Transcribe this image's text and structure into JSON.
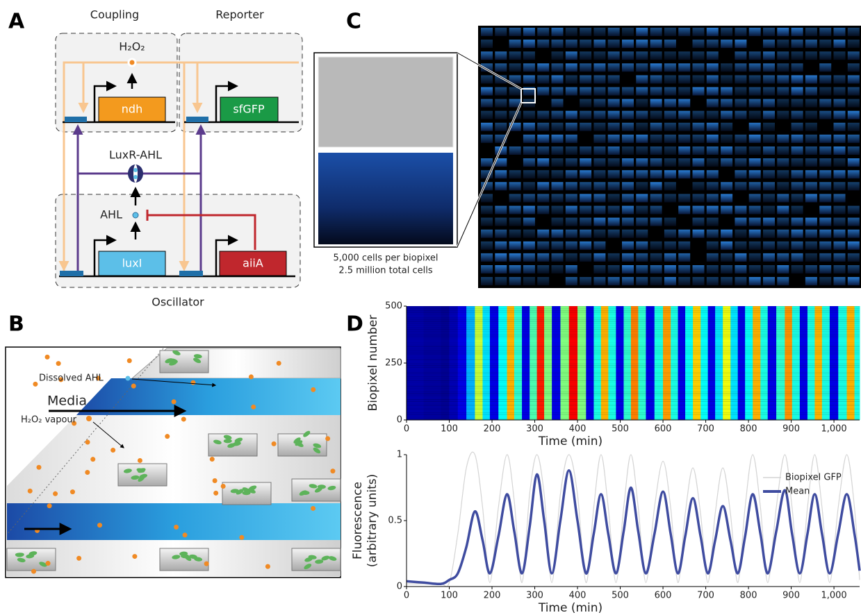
{
  "panel_labels": [
    "A",
    "B",
    "C",
    "D"
  ],
  "diagram_a": {
    "coupling": "Coupling",
    "reporter": "Reporter",
    "oscillator": "Oscillator",
    "h2o2": "H₂O₂",
    "luxr_ahl": "LuxR-AHL",
    "ahl": "AHL",
    "genes": [
      "ndh",
      "sfGFP",
      "luxI",
      "aiiA"
    ]
  },
  "diagram_b": {
    "dissolved_ahl": "Dissolved AHL",
    "media": "Media",
    "h2o2_vapour": "H₂O₂ vapour"
  },
  "panel_c": {
    "caption": [
      "5,000 cells per biopixel",
      "2.5 million total cells"
    ]
  },
  "chart_data": [
    {
      "type": "heatmap",
      "ylabel": "Biopixel number",
      "xlabel": "Time (min)",
      "x": [
        0,
        40,
        80,
        100,
        120,
        140,
        160,
        178,
        195,
        215,
        235,
        252,
        270,
        288,
        305,
        322,
        340,
        360,
        380,
        400,
        420,
        438,
        455,
        472,
        490,
        508,
        525,
        542,
        560,
        580,
        600,
        618,
        635,
        652,
        670,
        688,
        705,
        722,
        740,
        758,
        775,
        792,
        810,
        828,
        845,
        865,
        885,
        902,
        920,
        938,
        955,
        972,
        990,
        1010,
        1030,
        1048,
        1060
      ],
      "values": [
        0.04,
        0.03,
        0.02,
        0.05,
        0.1,
        0.3,
        0.57,
        0.35,
        0.1,
        0.38,
        0.7,
        0.42,
        0.1,
        0.45,
        0.85,
        0.5,
        0.1,
        0.5,
        0.88,
        0.5,
        0.1,
        0.4,
        0.7,
        0.4,
        0.1,
        0.42,
        0.75,
        0.42,
        0.1,
        0.4,
        0.72,
        0.4,
        0.1,
        0.38,
        0.67,
        0.38,
        0.1,
        0.35,
        0.61,
        0.35,
        0.1,
        0.38,
        0.7,
        0.4,
        0.1,
        0.42,
        0.73,
        0.4,
        0.1,
        0.4,
        0.7,
        0.4,
        0.1,
        0.4,
        0.7,
        0.4,
        0.12
      ],
      "xlim": [
        0,
        1060
      ],
      "ylim": [
        0,
        500
      ],
      "xticks": [
        0,
        100,
        200,
        300,
        400,
        500,
        600,
        700,
        800,
        900,
        {
          "value": 1000,
          "label": "1,000"
        }
      ],
      "yticks": [
        0,
        250,
        500
      ]
    },
    {
      "type": "line",
      "ylabel": [
        "Fluorescence",
        "(arbitrary units)"
      ],
      "xlabel": "Time  (min)",
      "x": [
        0,
        40,
        80,
        100,
        120,
        140,
        160,
        178,
        195,
        215,
        235,
        252,
        270,
        288,
        305,
        322,
        340,
        360,
        380,
        400,
        420,
        438,
        455,
        472,
        490,
        508,
        525,
        542,
        560,
        580,
        600,
        618,
        635,
        652,
        670,
        688,
        705,
        722,
        740,
        758,
        775,
        792,
        810,
        828,
        845,
        865,
        885,
        902,
        920,
        938,
        955,
        972,
        990,
        1010,
        1030,
        1048,
        1060
      ],
      "series": [
        {
          "name": "Biopixel GFP",
          "color": "#d4d4d4",
          "values": [
            0.02,
            0.02,
            0.02,
            0.03,
            0.4,
            0.9,
            1,
            0.6,
            0.03,
            0.6,
            1,
            0.65,
            0.03,
            0.7,
            1,
            0.7,
            0.03,
            0.7,
            1,
            0.7,
            0.03,
            0.6,
            1,
            0.6,
            0.03,
            0.6,
            1,
            0.6,
            0.03,
            0.6,
            0.95,
            0.6,
            0.03,
            0.55,
            0.9,
            0.55,
            0.03,
            0.55,
            0.9,
            0.55,
            0.03,
            0.6,
            1,
            0.6,
            0.03,
            0.6,
            1,
            0.6,
            0.03,
            0.6,
            1,
            0.6,
            0.03,
            0.6,
            1,
            0.6,
            0.05
          ]
        },
        {
          "name": "Mean",
          "color": "#3f4ca0",
          "values": [
            0.04,
            0.03,
            0.02,
            0.05,
            0.1,
            0.3,
            0.57,
            0.35,
            0.1,
            0.38,
            0.7,
            0.42,
            0.1,
            0.45,
            0.85,
            0.5,
            0.1,
            0.5,
            0.88,
            0.5,
            0.1,
            0.4,
            0.7,
            0.4,
            0.1,
            0.42,
            0.75,
            0.42,
            0.1,
            0.4,
            0.72,
            0.4,
            0.1,
            0.38,
            0.67,
            0.38,
            0.1,
            0.35,
            0.61,
            0.35,
            0.1,
            0.38,
            0.7,
            0.4,
            0.1,
            0.42,
            0.73,
            0.4,
            0.1,
            0.4,
            0.7,
            0.4,
            0.1,
            0.4,
            0.7,
            0.4,
            0.12
          ]
        }
      ],
      "xlim": [
        0,
        1060
      ],
      "ylim": [
        0,
        1
      ],
      "xticks": [
        0,
        100,
        200,
        300,
        400,
        500,
        600,
        700,
        800,
        900,
        {
          "value": 1000,
          "label": "1,000"
        }
      ],
      "yticks": [
        0,
        0.5,
        1
      ]
    }
  ]
}
